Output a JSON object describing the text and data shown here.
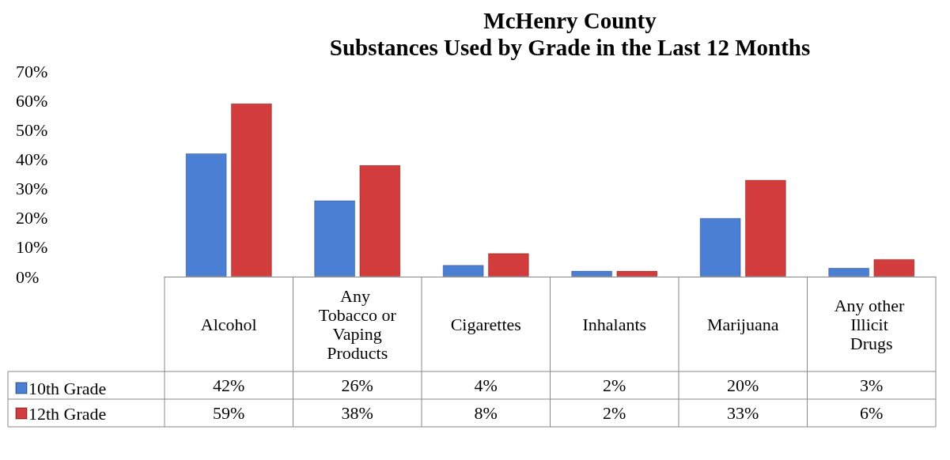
{
  "chart_data": {
    "type": "bar",
    "title": "McHenry County\nSubstances Used by Grade in the Last 12 Months",
    "categories": [
      "Alcohol",
      "Any Tobacco or Vaping Products",
      "Cigarettes",
      "Inhalants",
      "Marijuana",
      "Any other Illicit Drugs"
    ],
    "series": [
      {
        "name": "10th Grade",
        "color": "#4a7fd4",
        "values": [
          42,
          26,
          4,
          2,
          20,
          3
        ],
        "value_labels": [
          "42%",
          "26%",
          "4%",
          "2%",
          "20%",
          "3%"
        ]
      },
      {
        "name": "12th Grade",
        "color": "#d23c3c",
        "values": [
          59,
          38,
          8,
          2,
          33,
          6
        ],
        "value_labels": [
          "59%",
          "38%",
          "8%",
          "2%",
          "33%",
          "6%"
        ]
      }
    ],
    "ylim": [
      0,
      70
    ],
    "yticks": [
      {
        "value": 0,
        "label": "0%"
      },
      {
        "value": 10,
        "label": "10%"
      },
      {
        "value": 20,
        "label": "20%"
      },
      {
        "value": 30,
        "label": "30%"
      },
      {
        "value": 40,
        "label": "40%"
      },
      {
        "value": 50,
        "label": "50%"
      },
      {
        "value": 60,
        "label": "60%"
      },
      {
        "value": 70,
        "label": "70%"
      }
    ],
    "legend": "bottom left"
  }
}
